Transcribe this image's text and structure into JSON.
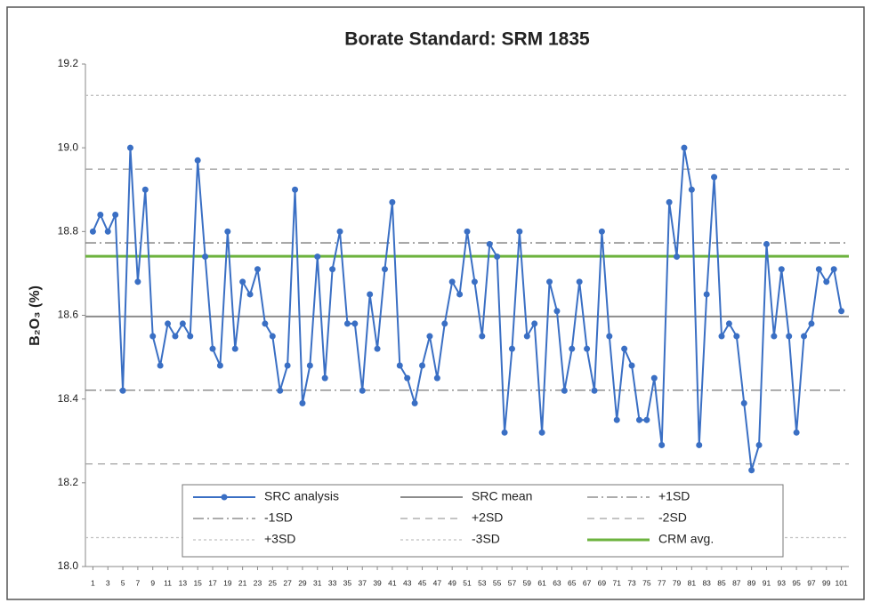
{
  "chart_data": {
    "type": "line",
    "title": "Borate Standard:  SRM 1835",
    "y_label": "B₂O₃ (%)",
    "x": [
      1,
      2,
      3,
      4,
      5,
      6,
      7,
      8,
      9,
      10,
      11,
      12,
      13,
      14,
      15,
      16,
      17,
      18,
      19,
      20,
      21,
      22,
      23,
      24,
      25,
      26,
      27,
      28,
      29,
      30,
      31,
      32,
      33,
      34,
      35,
      36,
      37,
      38,
      39,
      40,
      41,
      42,
      43,
      44,
      45,
      46,
      47,
      48,
      49,
      50,
      51,
      52,
      53,
      54,
      55,
      56,
      57,
      58,
      59,
      60,
      61,
      62,
      63,
      64,
      65,
      66,
      67,
      68,
      69,
      70,
      71,
      72,
      73,
      74,
      75,
      76,
      77,
      78,
      79,
      80,
      81,
      82,
      83,
      84,
      85,
      86,
      87,
      88,
      89,
      90,
      91,
      92,
      93,
      94,
      95,
      96,
      97,
      98,
      99,
      100,
      101
    ],
    "series": [
      {
        "name": "SRC analysis",
        "color": "#3a6fc4",
        "values": [
          18.8,
          18.84,
          18.8,
          18.84,
          18.42,
          19.0,
          18.68,
          18.9,
          18.55,
          18.48,
          18.58,
          18.55,
          18.58,
          18.55,
          18.97,
          18.74,
          18.52,
          18.48,
          18.8,
          18.52,
          18.68,
          18.65,
          18.71,
          18.58,
          18.55,
          18.42,
          18.48,
          18.9,
          18.39,
          18.48,
          18.74,
          18.45,
          18.71,
          18.8,
          18.58,
          18.58,
          18.42,
          18.65,
          18.52,
          18.71,
          18.87,
          18.48,
          18.45,
          18.39,
          18.48,
          18.55,
          18.45,
          18.58,
          18.68,
          18.65,
          18.8,
          18.68,
          18.55,
          18.77,
          18.74,
          18.32,
          18.52,
          18.8,
          18.55,
          18.58,
          18.32,
          18.68,
          18.61,
          18.42,
          18.52,
          18.68,
          18.52,
          18.42,
          18.8,
          18.55,
          18.35,
          18.52,
          18.48,
          18.35,
          18.35,
          18.45,
          18.29,
          18.87,
          18.74,
          19.0,
          18.9,
          18.29,
          18.65,
          18.93,
          18.55,
          18.58,
          18.55,
          18.39,
          18.23,
          18.29,
          18.77,
          18.55,
          18.71,
          18.55,
          18.32,
          18.55,
          18.58,
          18.71,
          18.68,
          18.71,
          18.61
        ]
      }
    ],
    "reference_lines": [
      {
        "name": "SRC mean",
        "value": 18.597,
        "color": "#8c8c8c",
        "dash": "solid"
      },
      {
        "name": "+1SD",
        "value": 18.773,
        "color": "#7a7a7a",
        "dash": "dashdot"
      },
      {
        "name": "-1SD",
        "value": 18.421,
        "color": "#7a7a7a",
        "dash": "dashdot"
      },
      {
        "name": "+2SD",
        "value": 18.949,
        "color": "#a0a0a0",
        "dash": "dashed"
      },
      {
        "name": "-2SD",
        "value": 18.245,
        "color": "#a0a0a0",
        "dash": "dashed"
      },
      {
        "name": "+3SD",
        "value": 19.125,
        "color": "#c0c0c0",
        "dash": "dotted"
      },
      {
        "name": "-3SD",
        "value": 18.069,
        "color": "#c0c0c0",
        "dash": "dotted"
      },
      {
        "name": "CRM avg.",
        "value": 18.741,
        "color": "#6db33f",
        "dash": "solid"
      }
    ],
    "xlim": [
      0,
      102
    ],
    "xticks": [
      1,
      3,
      5,
      7,
      9,
      11,
      13,
      15,
      17,
      19,
      21,
      23,
      25,
      27,
      29,
      31,
      33,
      35,
      37,
      39,
      41,
      43,
      45,
      47,
      49,
      51,
      53,
      55,
      57,
      59,
      61,
      63,
      65,
      67,
      69,
      71,
      73,
      75,
      77,
      79,
      81,
      83,
      85,
      87,
      89,
      91,
      93,
      95,
      97,
      99,
      101
    ],
    "ylim": [
      18.0,
      19.2
    ],
    "yticks": [
      {
        "value": 18.0,
        "label": "18.0"
      },
      18.2,
      18.4,
      18.6,
      18.8,
      {
        "value": 19.0,
        "label": "19.0"
      },
      19.2
    ],
    "legend": "bottom",
    "markers": true
  }
}
